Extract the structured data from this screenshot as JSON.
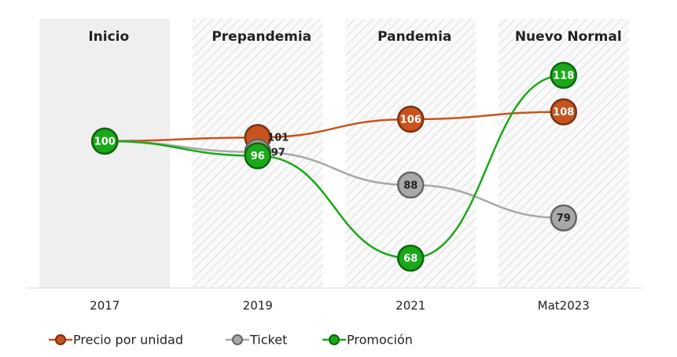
{
  "chart_data": {
    "type": "line",
    "column_labels": [
      "Inicio",
      "Prepandemia",
      "Pandemia",
      "Nuevo Normal"
    ],
    "categories": [
      "2017",
      "2019",
      "2021",
      "Mat2023"
    ],
    "series": [
      {
        "name": "Precio por unidad",
        "color": "#c9531e",
        "values": [
          100,
          101,
          106,
          108
        ]
      },
      {
        "name": "Ticket",
        "color": "#a8a8a6",
        "values": [
          100,
          97,
          88,
          79
        ]
      },
      {
        "name": "Promoción",
        "color": "#19a919",
        "values": [
          100,
          96,
          68,
          118
        ]
      }
    ]
  }
}
